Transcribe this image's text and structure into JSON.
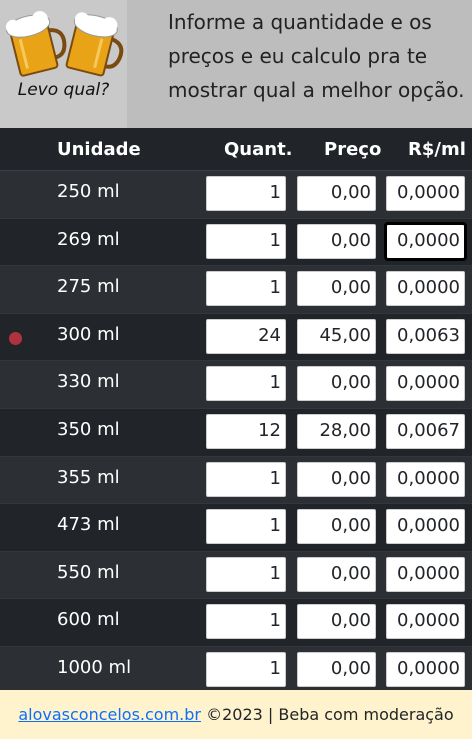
{
  "header": {
    "logo_text": "Levo qual?",
    "intro": "Informe a quantidade e os preços e eu calculo pra te mostrar qual a melhor opção."
  },
  "table": {
    "headers": {
      "unit": "Unidade",
      "qty": "Quant.",
      "price": "Preço",
      "rate": "R$/ml"
    },
    "rows": [
      {
        "unit": "250 ml",
        "qty": "1",
        "price": "0,00",
        "rate": "0,0000",
        "best": false
      },
      {
        "unit": "269 ml",
        "qty": "1",
        "price": "0,00",
        "rate": "0,0000",
        "best": false,
        "focused": true
      },
      {
        "unit": "275 ml",
        "qty": "1",
        "price": "0,00",
        "rate": "0,0000",
        "best": false
      },
      {
        "unit": "300 ml",
        "qty": "24",
        "price": "45,00",
        "rate": "0,0063",
        "best": true
      },
      {
        "unit": "330 ml",
        "qty": "1",
        "price": "0,00",
        "rate": "0,0000",
        "best": false
      },
      {
        "unit": "350 ml",
        "qty": "12",
        "price": "28,00",
        "rate": "0,0067",
        "best": false
      },
      {
        "unit": "355 ml",
        "qty": "1",
        "price": "0,00",
        "rate": "0,0000",
        "best": false
      },
      {
        "unit": "473 ml",
        "qty": "1",
        "price": "0,00",
        "rate": "0,0000",
        "best": false
      },
      {
        "unit": "550 ml",
        "qty": "1",
        "price": "0,00",
        "rate": "0,0000",
        "best": false
      },
      {
        "unit": "600 ml",
        "qty": "1",
        "price": "0,00",
        "rate": "0,0000",
        "best": false
      },
      {
        "unit": "1000 ml",
        "qty": "1",
        "price": "0,00",
        "rate": "0,0000",
        "best": false
      }
    ]
  },
  "footer": {
    "link": "alovasconcelos.com.br",
    "text": "©2023 | Beba com moderação"
  },
  "colors": {
    "best_dot": "#b0323f",
    "footer_bg": "#fff3cd"
  }
}
